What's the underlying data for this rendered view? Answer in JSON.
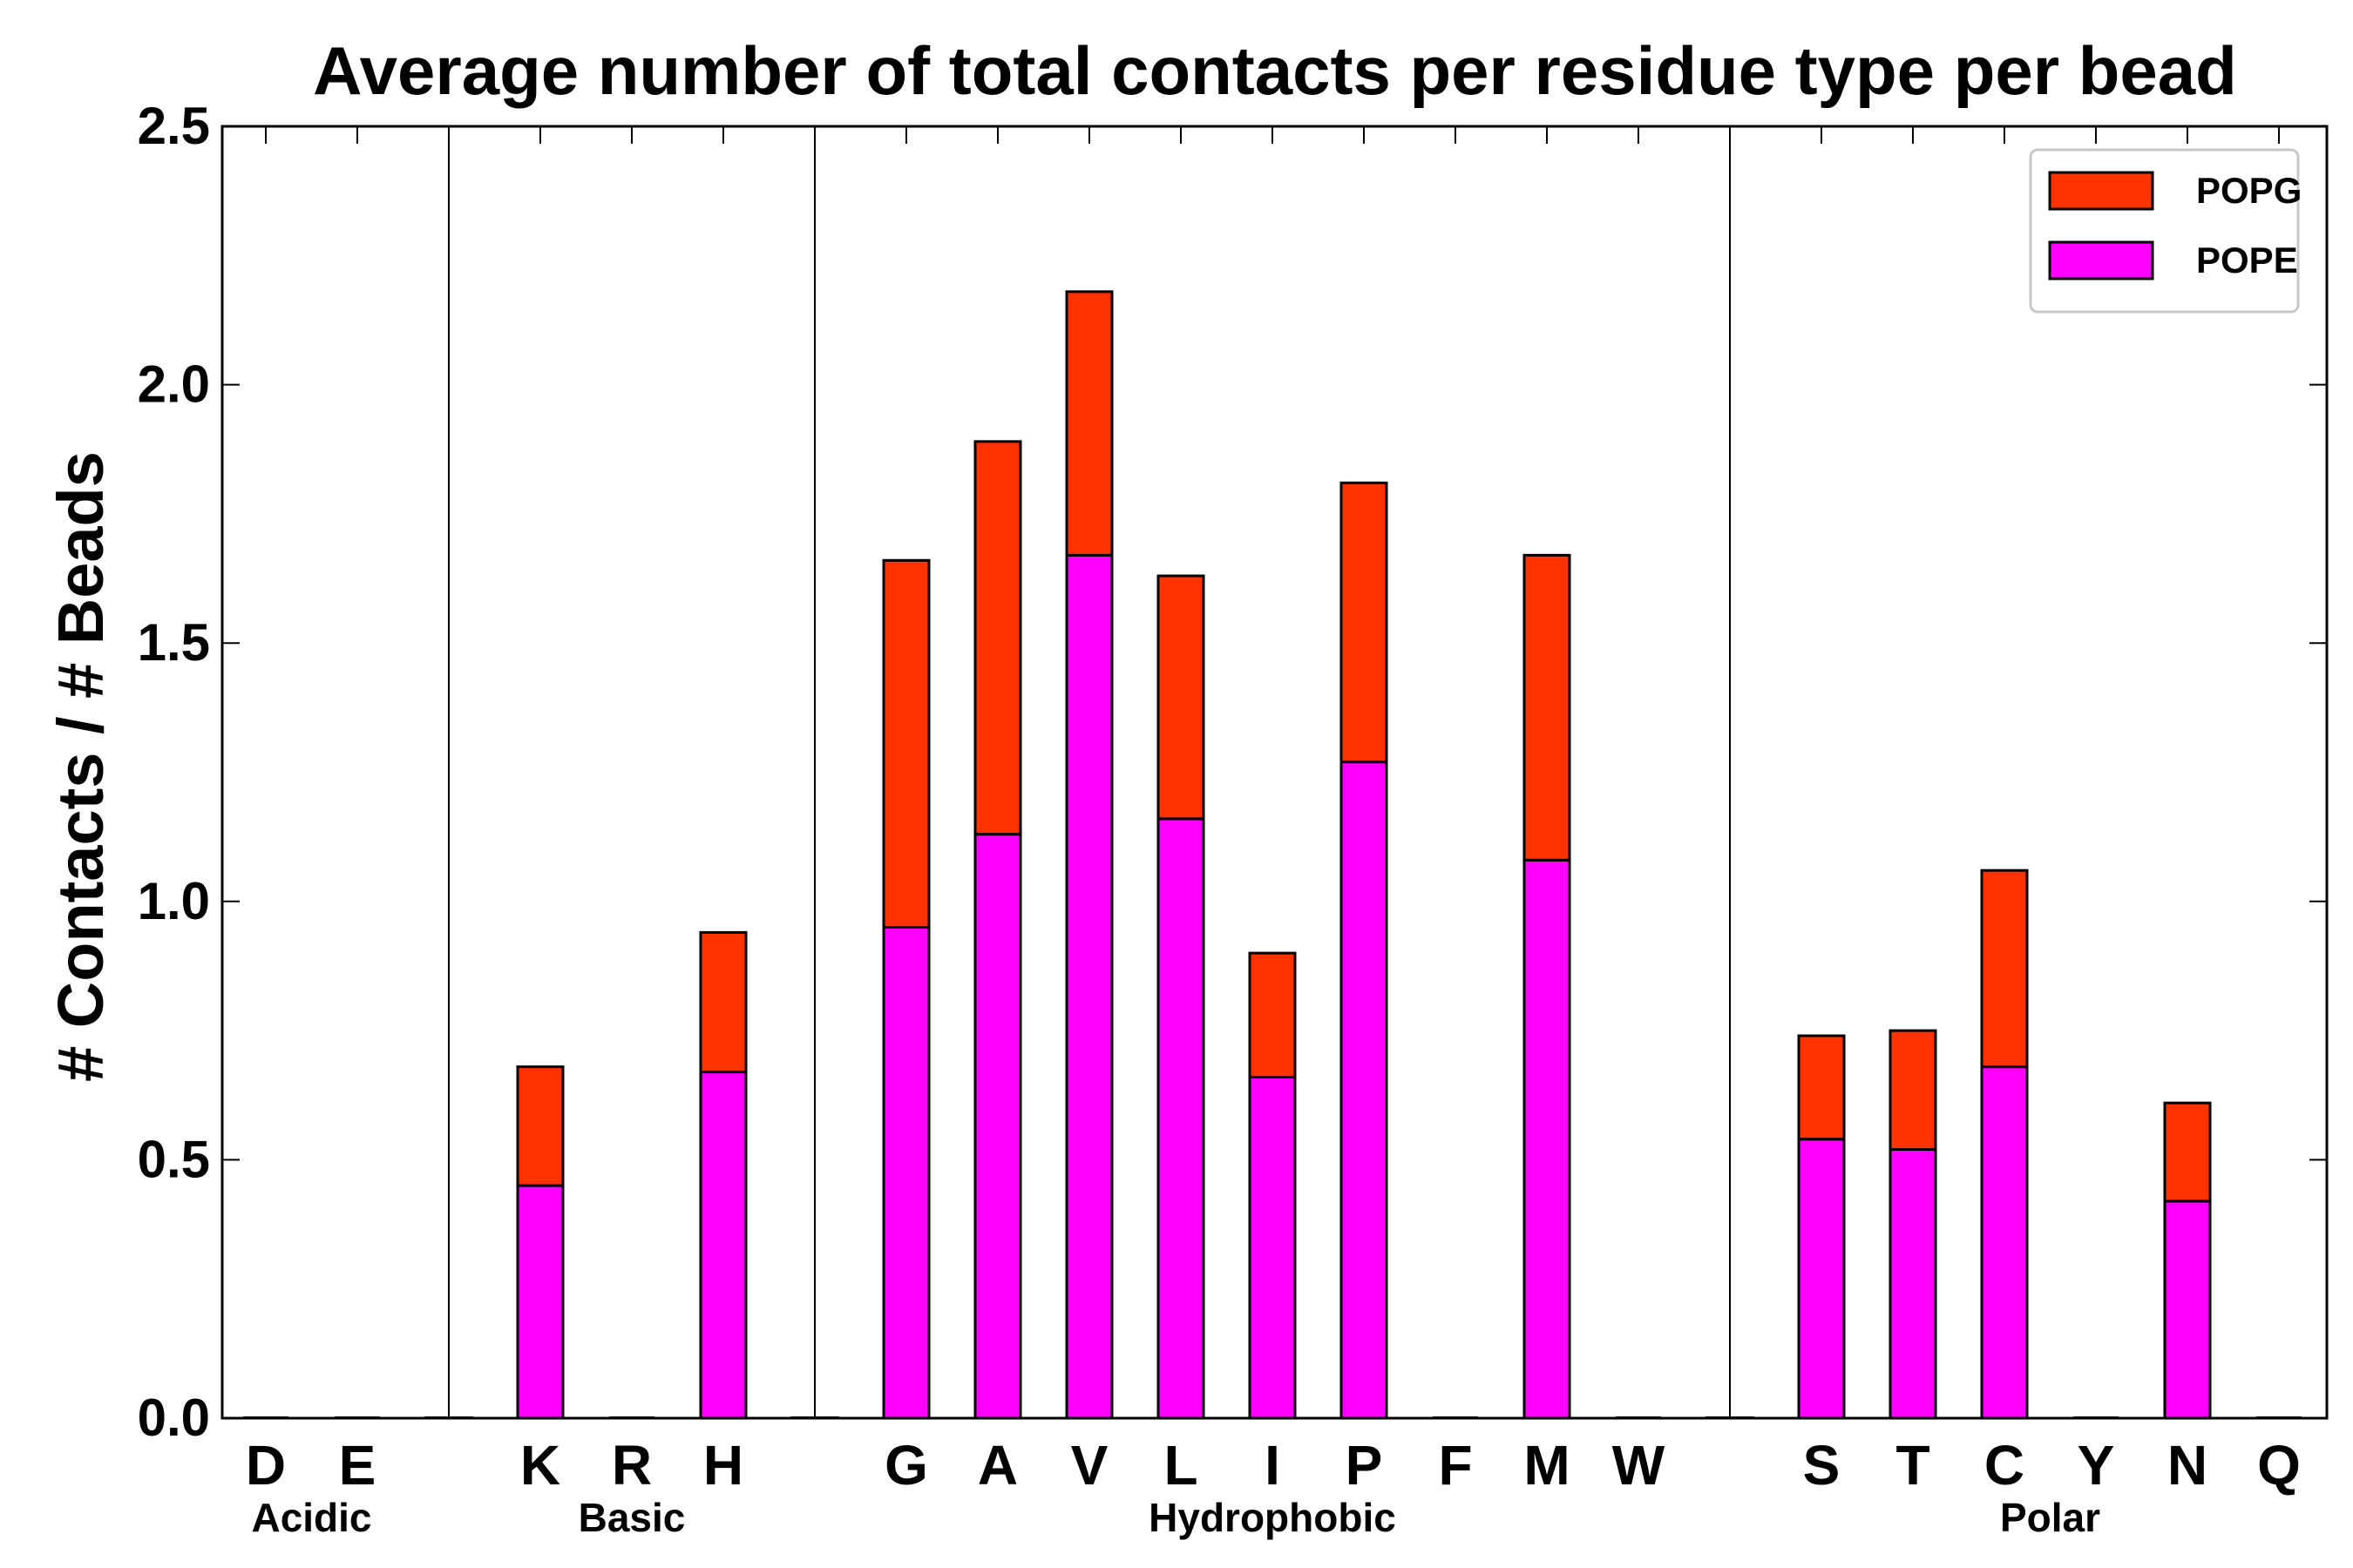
{
  "chart_data": {
    "type": "bar",
    "stacked": true,
    "title": "Average number of total contacts per residue type per bead",
    "xlabel": "",
    "ylabel": "# Contacts / # Beads",
    "ylim": [
      0,
      2.5
    ],
    "yticks": [
      "0.0",
      "0.5",
      "1.0",
      "1.5",
      "2.0",
      "2.5"
    ],
    "categories": [
      "D",
      "E",
      "K",
      "R",
      "H",
      "G",
      "A",
      "V",
      "L",
      "I",
      "P",
      "F",
      "M",
      "W",
      "S",
      "T",
      "C",
      "Y",
      "N",
      "Q"
    ],
    "series": [
      {
        "name": "POPE",
        "color": "#ff00ff",
        "values": [
          0,
          0,
          0.45,
          0,
          0.67,
          0.95,
          1.13,
          1.67,
          1.16,
          0.66,
          1.27,
          0,
          1.08,
          0,
          0.54,
          0.52,
          0.68,
          0,
          0.42,
          0
        ]
      },
      {
        "name": "POPG",
        "color": "#ff3300",
        "values": [
          0,
          0,
          0.23,
          0,
          0.27,
          0.71,
          0.76,
          0.51,
          0.47,
          0.24,
          0.54,
          0,
          0.59,
          0,
          0.2,
          0.23,
          0.38,
          0,
          0.19,
          0
        ]
      }
    ],
    "groups": [
      {
        "name": "Acidic",
        "members": [
          "D",
          "E"
        ]
      },
      {
        "name": "Basic",
        "members": [
          "K",
          "R",
          "H"
        ]
      },
      {
        "name": "Hydrophobic",
        "members": [
          "G",
          "A",
          "V",
          "L",
          "I",
          "P",
          "F",
          "M",
          "W"
        ]
      },
      {
        "name": "Polar",
        "members": [
          "S",
          "T",
          "C",
          "Y",
          "N",
          "Q"
        ]
      }
    ],
    "legend": {
      "location": "top-right",
      "entries": [
        "POPG",
        "POPE"
      ]
    }
  }
}
